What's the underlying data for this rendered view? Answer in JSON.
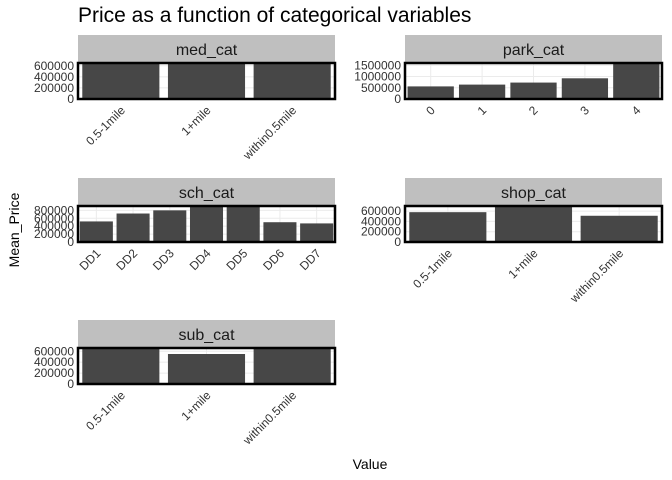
{
  "title": "Price as a function of categorical variables",
  "xlabel": "Value",
  "ylabel": "Mean_Price",
  "colors": {
    "bar": "#474747",
    "strip": "#bfbfbf",
    "panel_border": "#000000",
    "grid": "#ebebeb"
  },
  "chart_data": [
    {
      "type": "bar",
      "facet": "med_cat",
      "categories": [
        "0.5-1mile",
        "1+mile",
        "within0.5mile"
      ],
      "values": [
        640000,
        650000,
        645000
      ],
      "yticks": [
        0,
        200000,
        400000,
        600000
      ],
      "ylim": [
        0,
        650000
      ],
      "grid": true
    },
    {
      "type": "bar",
      "facet": "park_cat",
      "categories": [
        "0",
        "1",
        "2",
        "3",
        "4"
      ],
      "values": [
        560000,
        640000,
        730000,
        920000,
        1600000
      ],
      "yticks": [
        0,
        500000,
        1000000,
        1500000
      ],
      "ylim": [
        0,
        1600000
      ],
      "grid": true
    },
    {
      "type": "bar",
      "facet": "sch_cat",
      "categories": [
        "DD1",
        "DD2",
        "DD3",
        "DD4",
        "DD5",
        "DD6",
        "DD7"
      ],
      "values": [
        520000,
        720000,
        800000,
        910000,
        910000,
        500000,
        470000
      ],
      "yticks": [
        0,
        200000,
        400000,
        600000,
        800000
      ],
      "ylim": [
        0,
        910000
      ],
      "grid": true
    },
    {
      "type": "bar",
      "facet": "shop_cat",
      "categories": [
        "0.5-1mile",
        "1+mile",
        "within0.5mile"
      ],
      "values": [
        580000,
        700000,
        510000
      ],
      "yticks": [
        0,
        200000,
        400000,
        600000
      ],
      "ylim": [
        0,
        700000
      ],
      "grid": true
    },
    {
      "type": "bar",
      "facet": "sub_cat",
      "categories": [
        "0.5-1mile",
        "1+mile",
        "within0.5mile"
      ],
      "values": [
        660000,
        550000,
        660000
      ],
      "yticks": [
        0,
        200000,
        400000,
        600000
      ],
      "ylim": [
        0,
        660000
      ],
      "grid": true
    }
  ]
}
